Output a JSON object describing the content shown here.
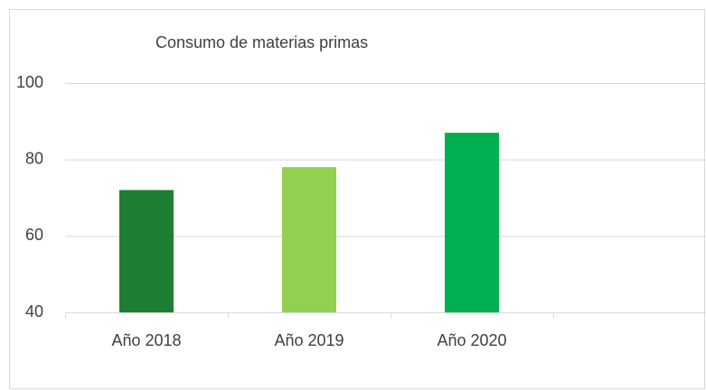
{
  "chart_data": {
    "type": "bar",
    "title": "Consumo de materias primas",
    "categories": [
      "Año 2018",
      "Año 2019",
      "Año 2020",
      null
    ],
    "values": [
      72,
      78,
      87,
      null
    ],
    "colors": [
      "#1e7e34",
      "#92d050",
      "#00b050",
      null
    ],
    "ylim": [
      40,
      100
    ],
    "yticks": [
      40,
      60,
      80,
      100
    ],
    "grid": true
  }
}
